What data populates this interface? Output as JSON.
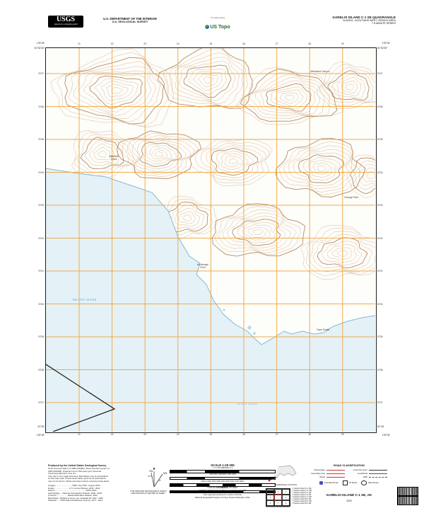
{
  "header": {
    "usgs": {
      "wordmark": "USGS",
      "tagline": "science for a changing world"
    },
    "dept_line1": "U.S. DEPARTMENT OF THE INTERIOR",
    "dept_line2": "U.S. GEOLOGICAL SURVEY",
    "ustopo": {
      "program": "The National Map",
      "brand": "US Topo"
    },
    "quad": {
      "title": "GARELOI ISLAND C-1 SE QUADRANGLE",
      "subtitle": "ALASKA - ALEUTIANS WEST CENSUS AREA",
      "series": "7.5-MINUTE SERIES"
    }
  },
  "map": {
    "corners": {
      "tl_lon": "178°45'",
      "tl_lat": "51°52'30\"",
      "tr_lon": "178°30'",
      "tr_lat": "51°52'30\"",
      "bl_lat": "51°45'",
      "bl_lon": "178°45'",
      "br_lat": "51°45'",
      "br_lon": "178°30'"
    },
    "grid_top": [
      "21",
      "22",
      "23",
      "24",
      "25",
      "26",
      "27",
      "28",
      "29"
    ],
    "grid_left": [
      "5747",
      "5746",
      "5745",
      "5744",
      "5743",
      "5742",
      "5741",
      "5740",
      "5739",
      "5738",
      "5737"
    ],
    "labels": {
      "canyon": "Windward Canyon",
      "creek": "Waterfall\nCreek",
      "change_point": "Change Point",
      "anchorage_point": "Anchorage\nPoint",
      "cape": "Cape Sudak",
      "ocean": "PACIFIC OCEAN",
      "canyon_sea": "Gareloi Canyon"
    }
  },
  "colors": {
    "grid": "#f0a43c",
    "water": "#e4f1f7",
    "coast": "#86b9d6",
    "contour": "#cfa87e",
    "contour_index": "#b08050",
    "boundary": "#1a1a1a",
    "road_red": "#ca3b32"
  },
  "footer": {
    "produced_by": "Produced by the United States Geological Survey",
    "credits": [
      "North American Datum of 1983 (NAD83). World Geodetic System of",
      "1984 (WGS84). Projection and 1 000-meter grid: Universal",
      "Transverse Mercator, zone 1N",
      "This map is not a legal document. Boundaries may be generalized",
      "for this map scale. Private lands within government reservations",
      "may not be shown. Obtain permission before entering private lands."
    ],
    "sources": [
      "Imagery..............................NAIP, July 2019 - August 2019",
      "Roads...........................U.S. Census Bureau, 2015 - 2022",
      "Names.......................................................GNIS, 2023",
      "Hydrography.....National Hydrography Dataset, 2006 - 2023",
      "Contours....................National Elevation Dataset, 2012",
      "Boundaries...Multiple sources; see metadata file 1972 - 2023",
      "Wetlands.......FWS National Wetlands Inventory 1977 - 2014"
    ],
    "declination": {
      "star": "★",
      "gn": "GN",
      "mn": "MN",
      "gn_angle": "0°13'",
      "mn_angle": "9°",
      "caption": "UTM GRID AND 2023 MAGNETIC NORTH\nDECLINATION AT CENTER OF SHEET"
    },
    "scale": {
      "title": "SCALE 1:25 000",
      "rows": [
        {
          "caption": "1    .5    0    KILOMETERS    1    2"
        },
        {
          "caption": "1000    500    0    METERS    1000    2000"
        },
        {
          "caption": "1000  0  1000  2000  3000  4000  5000  6000  7000   FEET"
        },
        {
          "caption": ".5    0    MILES    1"
        }
      ],
      "contour_interval": "CONTOUR INTERVAL 50 FEET",
      "vertical_datum": "NORTH AMERICAN VERTICAL DATUM OF 1988",
      "standard_line1": "This map was produced to conform with the",
      "standard_line2": "National Geospatial Program US Topo Product Standard, 2011."
    },
    "locator_caption": "QUADRANGLE LOCATION",
    "adjoining_caption": "ADJOINING QUADRANGLES",
    "adjoining_cells": [
      "1",
      "2",
      "3",
      "4",
      "",
      "5",
      "6",
      "7",
      "8"
    ],
    "adjoining_list": [
      "1 Gareloi Island C-2 NE",
      "2 Gareloi Island C-1 NW",
      "3 Gareloi Island C-1 NE",
      "4 Gareloi Island C-2 SE",
      "5 Gareloi Island C-1 SW",
      "6 Gareloi Island B-2 NE",
      "7 Gareloi Island B-1 NW",
      "8 Gareloi Island B-1 NE"
    ],
    "road_classification": {
      "header": "ROAD CLASSIFICATION",
      "rows": [
        {
          "left": "Expressway",
          "right": "Local Connector"
        },
        {
          "left": "Secondary Hwy",
          "right": "Local Road"
        },
        {
          "left": "Ramp",
          "right": "4WD"
        }
      ],
      "shields": [
        "Interstate Route",
        "US Route",
        "State Route"
      ]
    },
    "bottom_title": "GARELOI ISLAND C-1 SE,  AK",
    "bottom_year": "2023"
  }
}
